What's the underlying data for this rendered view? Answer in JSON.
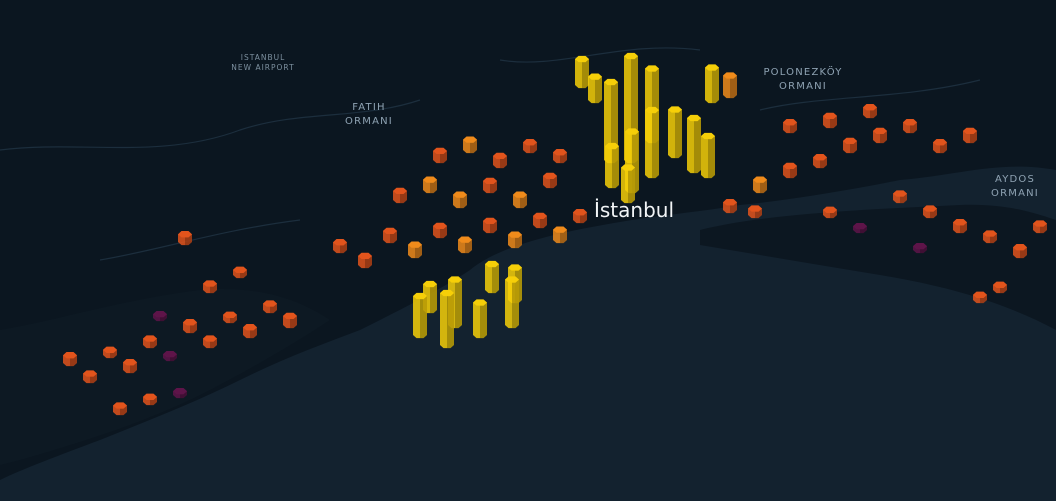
{
  "map": {
    "labels": [
      {
        "lines": [
          "ISTANBUL",
          "NEW AIRPORT"
        ]
      },
      {
        "lines": [
          "FATIH",
          "ORMANI"
        ]
      },
      {
        "lines": [
          "POLONEZKÖY",
          "ORMANI"
        ]
      },
      {
        "lines": [
          "AYDOS",
          "ORMANI"
        ]
      }
    ],
    "city": "İstanbul",
    "color_scale": [
      "#5e1449",
      "#e2541c",
      "#f08b1b",
      "#f6cf08"
    ],
    "columns": [
      6,
      5,
      4,
      6,
      5,
      3,
      6,
      5,
      4,
      6,
      5,
      7,
      3,
      6,
      5,
      4,
      5,
      4,
      3,
      6,
      7,
      7,
      8,
      7,
      8,
      7,
      8,
      7,
      8,
      6,
      7,
      8,
      8,
      7,
      8,
      7,
      7,
      8,
      7,
      6,
      6,
      8,
      7,
      6,
      7,
      7,
      6,
      6,
      7,
      6,
      7,
      6,
      5,
      5,
      6,
      5,
      6,
      5,
      4,
      3,
      3,
      4,
      4,
      6,
      5,
      60,
      80,
      55,
      45,
      50,
      30,
      25,
      35,
      40,
      25,
      20,
      18,
      30,
      15,
      30,
      40,
      35,
      25,
      35,
      25,
      20,
      20
    ]
  }
}
